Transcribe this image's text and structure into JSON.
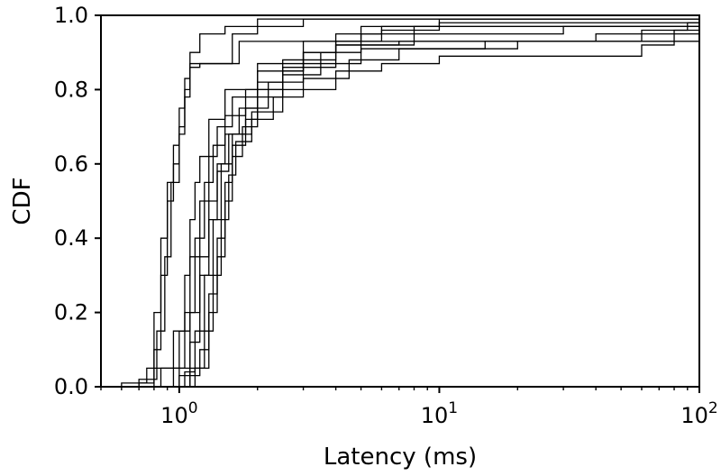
{
  "chart_data": {
    "type": "line",
    "step": true,
    "x_scale": "log",
    "xlim": [
      0.5,
      100
    ],
    "ylim": [
      0.0,
      1.0
    ],
    "grid": false,
    "legend": "none",
    "xlabel": "Latency (ms)",
    "ylabel": "CDF",
    "x_ticks": [
      {
        "value": 1,
        "base": "10",
        "exp": "0"
      },
      {
        "value": 10,
        "base": "10",
        "exp": "1"
      },
      {
        "value": 100,
        "base": "10",
        "exp": "2"
      }
    ],
    "y_ticks": [
      {
        "value": 0.0,
        "label": "0.0"
      },
      {
        "value": 0.2,
        "label": "0.2"
      },
      {
        "value": 0.4,
        "label": "0.4"
      },
      {
        "value": 0.6,
        "label": "0.6"
      },
      {
        "value": 0.8,
        "label": "0.8"
      },
      {
        "value": 1.0,
        "label": "1.0"
      }
    ],
    "line_color": "#000000",
    "series": [
      {
        "points": [
          [
            0.5,
            0
          ],
          [
            0.6,
            0.01
          ],
          [
            0.75,
            0.05
          ],
          [
            0.8,
            0.2
          ],
          [
            0.85,
            0.4
          ],
          [
            0.9,
            0.55
          ],
          [
            0.95,
            0.65
          ],
          [
            1.0,
            0.75
          ],
          [
            1.05,
            0.83
          ],
          [
            1.1,
            0.87
          ],
          [
            1.5,
            0.87
          ],
          [
            1.6,
            0.95
          ],
          [
            2.0,
            0.97
          ],
          [
            3.0,
            0.99
          ],
          [
            100,
            1.0
          ]
        ]
      },
      {
        "points": [
          [
            0.5,
            0
          ],
          [
            0.7,
            0.01
          ],
          [
            0.8,
            0.1
          ],
          [
            0.85,
            0.3
          ],
          [
            0.9,
            0.5
          ],
          [
            0.95,
            0.6
          ],
          [
            1.0,
            0.7
          ],
          [
            1.05,
            0.8
          ],
          [
            1.1,
            0.9
          ],
          [
            1.2,
            0.95
          ],
          [
            1.5,
            0.97
          ],
          [
            2.0,
            0.99
          ],
          [
            100,
            1.0
          ]
        ]
      },
      {
        "points": [
          [
            0.5,
            0
          ],
          [
            0.7,
            0.02
          ],
          [
            0.82,
            0.15
          ],
          [
            0.88,
            0.35
          ],
          [
            0.93,
            0.55
          ],
          [
            1.0,
            0.68
          ],
          [
            1.05,
            0.78
          ],
          [
            1.1,
            0.86
          ],
          [
            1.2,
            0.87
          ],
          [
            1.6,
            0.87
          ],
          [
            1.7,
            0.93
          ],
          [
            100,
            0.93
          ]
        ]
      },
      {
        "points": [
          [
            0.6,
            0
          ],
          [
            0.8,
            0.05
          ],
          [
            0.95,
            0.15
          ],
          [
            1.05,
            0.3
          ],
          [
            1.1,
            0.45
          ],
          [
            1.15,
            0.55
          ],
          [
            1.2,
            0.62
          ],
          [
            1.3,
            0.72
          ],
          [
            1.5,
            0.8
          ],
          [
            2.0,
            0.87
          ],
          [
            3.0,
            0.93
          ],
          [
            5.0,
            0.97
          ],
          [
            10,
            0.99
          ],
          [
            100,
            1.0
          ]
        ]
      },
      {
        "points": [
          [
            0.7,
            0
          ],
          [
            0.85,
            0.05
          ],
          [
            1.0,
            0.15
          ],
          [
            1.1,
            0.35
          ],
          [
            1.2,
            0.5
          ],
          [
            1.3,
            0.62
          ],
          [
            1.4,
            0.7
          ],
          [
            1.6,
            0.78
          ],
          [
            2.0,
            0.85
          ],
          [
            3.0,
            0.9
          ],
          [
            4.0,
            0.95
          ],
          [
            6.0,
            0.97
          ],
          [
            100,
            0.99
          ]
        ]
      },
      {
        "points": [
          [
            0.75,
            0
          ],
          [
            0.95,
            0.05
          ],
          [
            1.05,
            0.2
          ],
          [
            1.15,
            0.4
          ],
          [
            1.25,
            0.55
          ],
          [
            1.35,
            0.65
          ],
          [
            1.5,
            0.73
          ],
          [
            1.8,
            0.8
          ],
          [
            2.5,
            0.86
          ],
          [
            4.0,
            0.92
          ],
          [
            8.0,
            0.95
          ],
          [
            30,
            0.97
          ],
          [
            100,
            0.98
          ]
        ]
      },
      {
        "points": [
          [
            0.8,
            0
          ],
          [
            1.0,
            0.05
          ],
          [
            1.1,
            0.2
          ],
          [
            1.2,
            0.35
          ],
          [
            1.3,
            0.5
          ],
          [
            1.4,
            0.6
          ],
          [
            1.5,
            0.68
          ],
          [
            1.7,
            0.75
          ],
          [
            2.0,
            0.82
          ],
          [
            2.5,
            0.88
          ],
          [
            4.0,
            0.92
          ],
          [
            7.0,
            0.93
          ],
          [
            100,
            0.93
          ]
        ]
      },
      {
        "points": [
          [
            0.85,
            0
          ],
          [
            1.0,
            0.03
          ],
          [
            1.1,
            0.12
          ],
          [
            1.2,
            0.3
          ],
          [
            1.3,
            0.45
          ],
          [
            1.4,
            0.58
          ],
          [
            1.55,
            0.68
          ],
          [
            1.8,
            0.75
          ],
          [
            2.2,
            0.82
          ],
          [
            3.0,
            0.87
          ],
          [
            5.0,
            0.91
          ],
          [
            20,
            0.93
          ],
          [
            60,
            0.96
          ],
          [
            90,
            0.98
          ],
          [
            100,
            0.99
          ]
        ]
      },
      {
        "points": [
          [
            0.9,
            0
          ],
          [
            1.05,
            0.04
          ],
          [
            1.15,
            0.15
          ],
          [
            1.25,
            0.3
          ],
          [
            1.35,
            0.45
          ],
          [
            1.45,
            0.6
          ],
          [
            1.6,
            0.68
          ],
          [
            1.9,
            0.74
          ],
          [
            2.5,
            0.8
          ],
          [
            4.0,
            0.85
          ],
          [
            6.0,
            0.87
          ],
          [
            10,
            0.89
          ],
          [
            30,
            0.89
          ],
          [
            60,
            0.92
          ],
          [
            80,
            0.96
          ],
          [
            100,
            0.98
          ]
        ]
      },
      {
        "points": [
          [
            0.95,
            0
          ],
          [
            1.1,
            0.05
          ],
          [
            1.25,
            0.15
          ],
          [
            1.35,
            0.3
          ],
          [
            1.45,
            0.45
          ],
          [
            1.55,
            0.57
          ],
          [
            1.65,
            0.66
          ],
          [
            1.9,
            0.72
          ],
          [
            2.3,
            0.78
          ],
          [
            3.0,
            0.83
          ],
          [
            4.5,
            0.88
          ],
          [
            7.0,
            0.91
          ],
          [
            15,
            0.93
          ],
          [
            40,
            0.95
          ],
          [
            100,
            0.97
          ]
        ]
      },
      {
        "points": [
          [
            0.95,
            0
          ],
          [
            1.1,
            0.03
          ],
          [
            1.2,
            0.1
          ],
          [
            1.3,
            0.25
          ],
          [
            1.4,
            0.4
          ],
          [
            1.5,
            0.55
          ],
          [
            1.6,
            0.65
          ],
          [
            1.8,
            0.72
          ],
          [
            2.0,
            0.8
          ],
          [
            2.5,
            0.85
          ],
          [
            3.0,
            0.9
          ],
          [
            4.0,
            0.93
          ],
          [
            6.0,
            0.96
          ],
          [
            10,
            0.98
          ],
          [
            100,
            1.0
          ]
        ]
      },
      {
        "points": [
          [
            1.0,
            0
          ],
          [
            1.15,
            0.05
          ],
          [
            1.3,
            0.2
          ],
          [
            1.4,
            0.35
          ],
          [
            1.5,
            0.5
          ],
          [
            1.6,
            0.62
          ],
          [
            1.75,
            0.7
          ],
          [
            2.0,
            0.78
          ],
          [
            2.5,
            0.84
          ],
          [
            3.5,
            0.9
          ],
          [
            5.0,
            0.95
          ],
          [
            8.0,
            0.97
          ],
          [
            100,
            0.98
          ]
        ]
      }
    ]
  }
}
